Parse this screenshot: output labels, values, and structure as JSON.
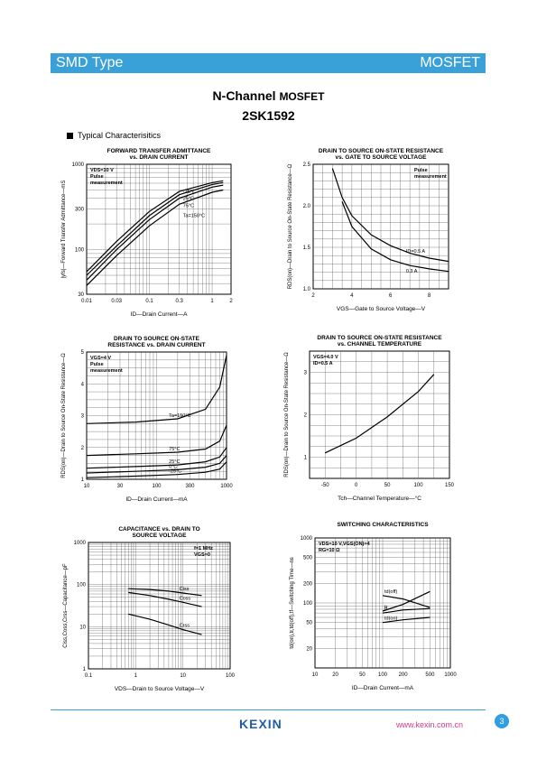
{
  "header": {
    "left": "SMD Type",
    "right": "MOSFET"
  },
  "title": {
    "line1_main": "N-Channel",
    "line1_sub": "MOSFET",
    "line2": "2SK1592"
  },
  "section": "Typical Characterisitics",
  "footer": {
    "logo": "KEXIN",
    "url": "www.kexin.com.cn",
    "page": "3"
  },
  "colors": {
    "accent": "#3aa0d8",
    "logo": "#1f5fa8",
    "url": "#d23a8a"
  },
  "chart_data": [
    {
      "type": "line",
      "title_l1": "FORWARD TRANSFER ADMITTANCE",
      "title_l2": "vs. DRAIN CURRENT",
      "ylabel": "|yfs|—Forward Transfer Admittance—mS",
      "xlabel": "ID—Drain Current—A",
      "xscale": "log",
      "yscale": "log",
      "xlim": [
        0.01,
        2
      ],
      "ylim": [
        30,
        1000
      ],
      "xticks": [
        "0.01",
        "0.03",
        "0.1",
        "0.3",
        "1",
        "2"
      ],
      "yticks": [
        "30",
        "100",
        "300",
        "1000"
      ],
      "notes": [
        "VDS=10 V",
        "Pulse",
        "measurement"
      ],
      "series": [
        {
          "name": "-25°C",
          "x": [
            0.01,
            0.03,
            0.1,
            0.3,
            1,
            1.5
          ],
          "y": [
            55,
            125,
            280,
            480,
            610,
            640
          ]
        },
        {
          "name": "25°C",
          "x": [
            0.01,
            0.03,
            0.1,
            0.3,
            1,
            1.5
          ],
          "y": [
            50,
            110,
            250,
            440,
            580,
            610
          ]
        },
        {
          "name": "75°C",
          "x": [
            0.01,
            0.03,
            0.1,
            0.3,
            1,
            1.5
          ],
          "y": [
            44,
            100,
            225,
            400,
            540,
            570
          ]
        },
        {
          "name": "Ta=150°C",
          "x": [
            0.01,
            0.03,
            0.1,
            0.3,
            1,
            1.5
          ],
          "y": [
            38,
            85,
            190,
            340,
            470,
            500
          ]
        }
      ]
    },
    {
      "type": "line",
      "title_l1": "DRAIN TO SOURCE ON-STATE RESISTANCE",
      "title_l2": "vs. GATE TO SOURCE VOLTAGE",
      "ylabel": "RDS(on)—Drain to Source On-State Resistance—Ω",
      "xlabel": "VGS—Gate to Source Voltage—V",
      "xlim": [
        2,
        9
      ],
      "ylim": [
        1.0,
        2.5
      ],
      "xticks": [
        "2",
        "4",
        "6",
        "8"
      ],
      "yticks": [
        "1.0",
        "1.5",
        "2.0",
        "2.5"
      ],
      "notes": [
        "Pulse",
        "measurement"
      ],
      "series": [
        {
          "name": "ID=0.5 A",
          "x": [
            3,
            3.5,
            4,
            5,
            6,
            7,
            8,
            9
          ],
          "y": [
            2.45,
            2.1,
            1.88,
            1.65,
            1.52,
            1.43,
            1.37,
            1.33
          ]
        },
        {
          "name": "0.3 A",
          "x": [
            3.5,
            4,
            5,
            6,
            7,
            8,
            9
          ],
          "y": [
            2.05,
            1.75,
            1.48,
            1.35,
            1.28,
            1.24,
            1.21
          ]
        }
      ]
    },
    {
      "type": "line",
      "title_l1": "DRAIN TO SOURCE ON-STATE",
      "title_l2": "RESISTANCE vs. DRAIN CURRENT",
      "ylabel": "RDS(on)—Drain to Source On-State Resistance—Ω",
      "xlabel": "ID—Drain Current—mA",
      "xscale": "log",
      "xlim": [
        10,
        1000
      ],
      "ylim": [
        1,
        5
      ],
      "xticks": [
        "10",
        "30",
        "100",
        "300",
        "1000"
      ],
      "yticks": [
        "1",
        "2",
        "3",
        "4",
        "5"
      ],
      "notes": [
        "VGS=4 V",
        "Pulse",
        "measurement"
      ],
      "series": [
        {
          "name": "Ta=150°C",
          "x": [
            10,
            50,
            200,
            500,
            800,
            1000
          ],
          "y": [
            2.75,
            2.8,
            2.9,
            3.2,
            3.9,
            4.9
          ]
        },
        {
          "name": "75°C",
          "x": [
            10,
            50,
            200,
            500,
            800,
            1000
          ],
          "y": [
            1.75,
            1.8,
            1.85,
            1.95,
            2.2,
            2.7
          ]
        },
        {
          "name": "25°C",
          "x": [
            10,
            50,
            200,
            500,
            800,
            1000
          ],
          "y": [
            1.35,
            1.4,
            1.45,
            1.55,
            1.7,
            2.0
          ]
        },
        {
          "name": "0°C",
          "x": [
            10,
            50,
            200,
            500,
            800,
            1000
          ],
          "y": [
            1.2,
            1.25,
            1.3,
            1.38,
            1.5,
            1.75
          ]
        },
        {
          "name": "-25°C",
          "x": [
            10,
            50,
            200,
            500,
            800,
            1000
          ],
          "y": [
            1.05,
            1.1,
            1.15,
            1.22,
            1.32,
            1.55
          ]
        }
      ]
    },
    {
      "type": "line",
      "title_l1": "DRAIN TO SOURCE ON-STATE RESISTANCE",
      "title_l2": "vs. CHANNEL TEMPERATURE",
      "ylabel": "RDS(on)—Drain to Source On-State Resistance—Ω",
      "xlabel": "Tch—Channel Temperature—°C",
      "xlim": [
        -75,
        150
      ],
      "ylim": [
        0.5,
        3.5
      ],
      "xticks": [
        "-50",
        "0",
        "50",
        "100",
        "150"
      ],
      "yticks": [
        "1",
        "2",
        "3"
      ],
      "notes": [
        "VGS=4.0 V",
        "ID=0.5 A"
      ],
      "series": [
        {
          "name": "",
          "x": [
            -50,
            0,
            50,
            100,
            125
          ],
          "y": [
            1.1,
            1.45,
            1.95,
            2.55,
            2.95
          ]
        }
      ]
    },
    {
      "type": "line",
      "title_l1": "CAPACITANCE vs. DRAIN TO",
      "title_l2": "SOURCE VOLTAGE",
      "ylabel": "Ciss,Coss,Crss—Capacitance—pF",
      "xlabel": "VDS—Drain to Source Voltage—V",
      "xscale": "log",
      "yscale": "log",
      "xlim": [
        0.1,
        100
      ],
      "ylim": [
        1,
        1000
      ],
      "xticks": [
        "0.1",
        "1",
        "10",
        "100"
      ],
      "yticks": [
        "1",
        "10",
        "100",
        "1000"
      ],
      "notes": [
        "f=1 MHz",
        "VGS=0"
      ],
      "series": [
        {
          "name": "Ciss",
          "x": [
            0.7,
            2,
            5,
            10,
            25
          ],
          "y": [
            80,
            76,
            70,
            63,
            55
          ]
        },
        {
          "name": "Coss",
          "x": [
            0.7,
            2,
            5,
            10,
            25
          ],
          "y": [
            65,
            55,
            45,
            38,
            30
          ]
        },
        {
          "name": "Crss",
          "x": [
            0.7,
            2,
            5,
            10,
            25
          ],
          "y": [
            20,
            15,
            11,
            8.5,
            6.5
          ]
        }
      ]
    },
    {
      "type": "line",
      "title_l1": "SWITCHING CHARACTERISTICS",
      "title_l2": "",
      "ylabel": "td(on),tr,td(off),tf—Switching Time—ns",
      "xlabel": "ID—Drain Current—mA",
      "xscale": "log",
      "yscale": "log",
      "xlim": [
        10,
        1000
      ],
      "ylim": [
        10,
        1000
      ],
      "xticks": [
        "10",
        "20",
        "50",
        "100",
        "200",
        "500",
        "1000"
      ],
      "yticks": [
        "20",
        "50",
        "100",
        "200",
        "500",
        "1000"
      ],
      "notes": [
        "VDS=10 V,VGS(ON)=4",
        "RG=10 Ω"
      ],
      "series": [
        {
          "name": "td(off)",
          "x": [
            100,
            200,
            500
          ],
          "y": [
            130,
            115,
            85
          ]
        },
        {
          "name": "tr",
          "x": [
            100,
            200,
            500
          ],
          "y": [
            75,
            95,
            150
          ]
        },
        {
          "name": "tf",
          "x": [
            100,
            200,
            500
          ],
          "y": [
            70,
            78,
            82
          ]
        },
        {
          "name": "td(on)",
          "x": [
            100,
            200,
            500
          ],
          "y": [
            50,
            55,
            60
          ]
        }
      ]
    }
  ]
}
